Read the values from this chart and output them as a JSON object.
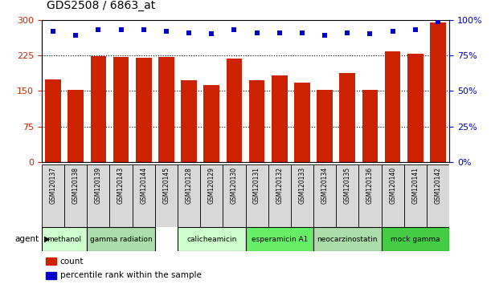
{
  "title": "GDS2508 / 6863_at",
  "samples": [
    "GSM120137",
    "GSM120138",
    "GSM120139",
    "GSM120143",
    "GSM120144",
    "GSM120145",
    "GSM120128",
    "GSM120129",
    "GSM120130",
    "GSM120131",
    "GSM120132",
    "GSM120133",
    "GSM120134",
    "GSM120135",
    "GSM120136",
    "GSM120140",
    "GSM120141",
    "GSM120142"
  ],
  "counts": [
    175,
    153,
    223,
    222,
    220,
    222,
    172,
    163,
    218,
    173,
    182,
    168,
    153,
    188,
    153,
    234,
    228,
    295
  ],
  "percentiles": [
    92,
    89,
    93,
    93,
    93,
    92,
    91,
    90,
    93,
    91,
    91,
    91,
    89,
    91,
    90,
    92,
    93,
    99
  ],
  "agents": [
    {
      "label": "methanol",
      "start": 0,
      "end": 2,
      "color": "#ccffcc"
    },
    {
      "label": "gamma radiation",
      "start": 2,
      "end": 5,
      "color": "#aaddaa"
    },
    {
      "label": "calicheamicin",
      "start": 6,
      "end": 9,
      "color": "#ccffcc"
    },
    {
      "label": "esperamicin A1",
      "start": 9,
      "end": 12,
      "color": "#66ee66"
    },
    {
      "label": "neocarzinostatin",
      "start": 12,
      "end": 15,
      "color": "#aaddaa"
    },
    {
      "label": "mock gamma",
      "start": 15,
      "end": 18,
      "color": "#44cc44"
    }
  ],
  "ylim_left": [
    0,
    300
  ],
  "ylim_right": [
    0,
    100
  ],
  "yticks_left": [
    0,
    75,
    150,
    225,
    300
  ],
  "yticks_right": [
    0,
    25,
    50,
    75,
    100
  ],
  "bar_color": "#cc2200",
  "dot_color": "#0000cc",
  "background_color": "#ffffff",
  "bar_color_left_axis": "#cc2200",
  "right_axis_color": "#0000cc",
  "legend_count_color": "#cc2200",
  "legend_pct_color": "#0000cc",
  "sample_box_color": "#d8d8d8",
  "grid_color": "#000000"
}
